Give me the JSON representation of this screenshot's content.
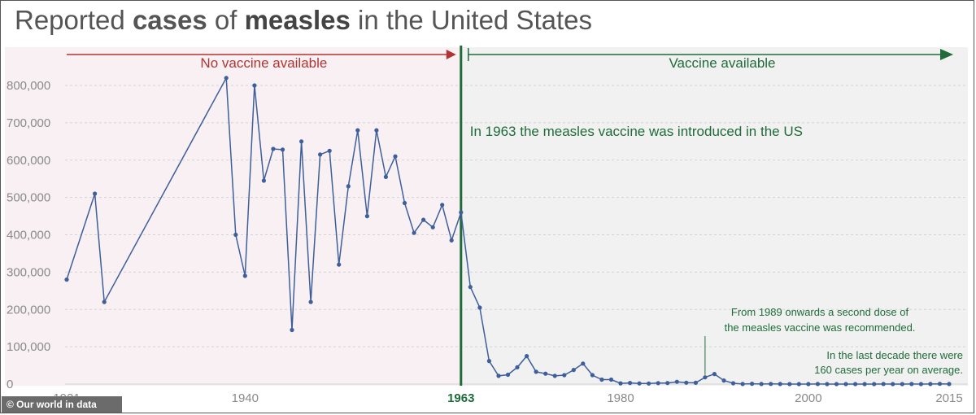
{
  "title": {
    "part1": "Reported ",
    "keyword1": "cases",
    "part2": " of ",
    "keyword2": "measles",
    "part3": " in the United States"
  },
  "colors": {
    "line": "#3f5f9a",
    "keyword1": "#3a5ea8",
    "no_vaccine": "#b03434",
    "vaccine": "#1f6b3a",
    "pre_bg": "#f8f0f3",
    "post_bg": "#f1f1f1",
    "axis_text": "#8a8a8a"
  },
  "credit": "© Our world in data",
  "chart_data": {
    "type": "line",
    "x_axis": {
      "ticks": [
        1921,
        1940,
        1963,
        1980,
        2000,
        2015
      ],
      "highlight_tick": 1963
    },
    "y_axis": {
      "ticks": [
        0,
        100000,
        200000,
        300000,
        400000,
        500000,
        600000,
        700000,
        800000
      ],
      "tick_labels": [
        "0",
        "100,000",
        "200,000",
        "300,000",
        "400,000",
        "500,000",
        "600,000",
        "700,000",
        "800,000"
      ]
    },
    "ylim": [
      0,
      800000
    ],
    "xlim": [
      1921,
      2015
    ],
    "vaccine_year": 1963,
    "annotations": {
      "no_vaccine": "No vaccine available",
      "vaccine": "Vaccine available",
      "introduced": "In 1963 the measles vaccine was introduced in the US",
      "second_dose_line1": "From 1989 onwards a second dose of",
      "second_dose_line2": "the measles vaccine was recommended.",
      "second_dose_year": 1989,
      "last_decade_line1": "In the last decade there were",
      "last_decade_line2": "160 cases per year on average."
    },
    "x": [
      1921,
      1924,
      1925,
      1938,
      1939,
      1940,
      1941,
      1942,
      1943,
      1944,
      1945,
      1946,
      1947,
      1948,
      1949,
      1950,
      1951,
      1952,
      1953,
      1954,
      1955,
      1956,
      1957,
      1958,
      1959,
      1960,
      1961,
      1962,
      1963,
      1964,
      1965,
      1966,
      1967,
      1968,
      1969,
      1970,
      1971,
      1972,
      1973,
      1974,
      1975,
      1976,
      1977,
      1978,
      1979,
      1980,
      1981,
      1982,
      1983,
      1984,
      1985,
      1986,
      1987,
      1988,
      1989,
      1990,
      1991,
      1992,
      1993,
      1994,
      1995,
      1996,
      1997,
      1998,
      1999,
      2000,
      2001,
      2002,
      2003,
      2004,
      2005,
      2006,
      2007,
      2008,
      2009,
      2010,
      2011,
      2012,
      2013,
      2014,
      2015
    ],
    "values": [
      280000,
      510000,
      220000,
      820000,
      400000,
      290000,
      800000,
      545000,
      630000,
      628000,
      145000,
      650000,
      220000,
      615000,
      625000,
      320000,
      530000,
      680000,
      450000,
      680000,
      555000,
      610000,
      485000,
      405000,
      440000,
      420000,
      480000,
      385000,
      460000,
      260000,
      205000,
      62000,
      22000,
      25000,
      45000,
      75000,
      33000,
      28000,
      22000,
      24000,
      38000,
      55000,
      24000,
      12000,
      12000,
      2000,
      3000,
      1700,
      1500,
      2600,
      2800,
      6000,
      3700,
      3400,
      18000,
      27000,
      9600,
      2200,
      300,
      900,
      300,
      500,
      140,
      100,
      100,
      86,
      116,
      44,
      56,
      37,
      66,
      55,
      43,
      140,
      71,
      63,
      220,
      55,
      187,
      667,
      188
    ]
  }
}
